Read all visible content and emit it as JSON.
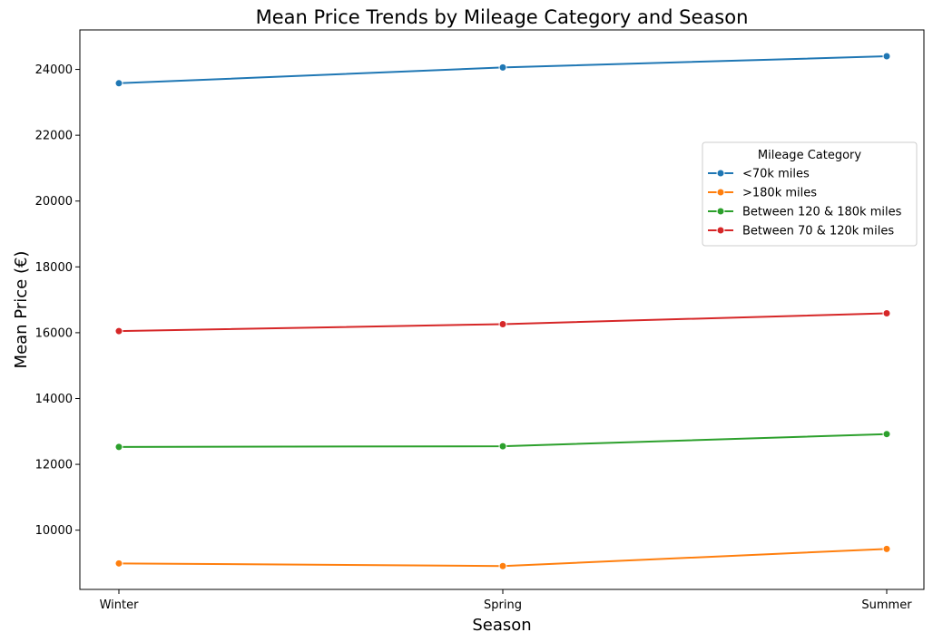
{
  "chart_data": {
    "type": "line",
    "title": "Mean Price Trends by Mileage Category and Season",
    "xlabel": "Season",
    "ylabel": "Mean Price (€)",
    "categories": [
      "Winter",
      "Spring",
      "Summer"
    ],
    "ylim": [
      8200,
      25200
    ],
    "yticks": [
      10000,
      12000,
      14000,
      16000,
      18000,
      20000,
      22000,
      24000
    ],
    "grid": false,
    "legend": {
      "title": "Mileage Category",
      "placement": "center-right"
    },
    "series": [
      {
        "name": "<70k miles",
        "color": "#1f77b4",
        "values": [
          23580,
          24060,
          24400
        ]
      },
      {
        "name": ">180k miles",
        "color": "#ff7f0e",
        "values": [
          8990,
          8910,
          9430
        ]
      },
      {
        "name": "Between 120 & 180k miles",
        "color": "#2ca02c",
        "values": [
          12530,
          12550,
          12920
        ]
      },
      {
        "name": "Between 70 & 120k miles",
        "color": "#d62728",
        "values": [
          16050,
          16260,
          16590
        ]
      }
    ]
  }
}
